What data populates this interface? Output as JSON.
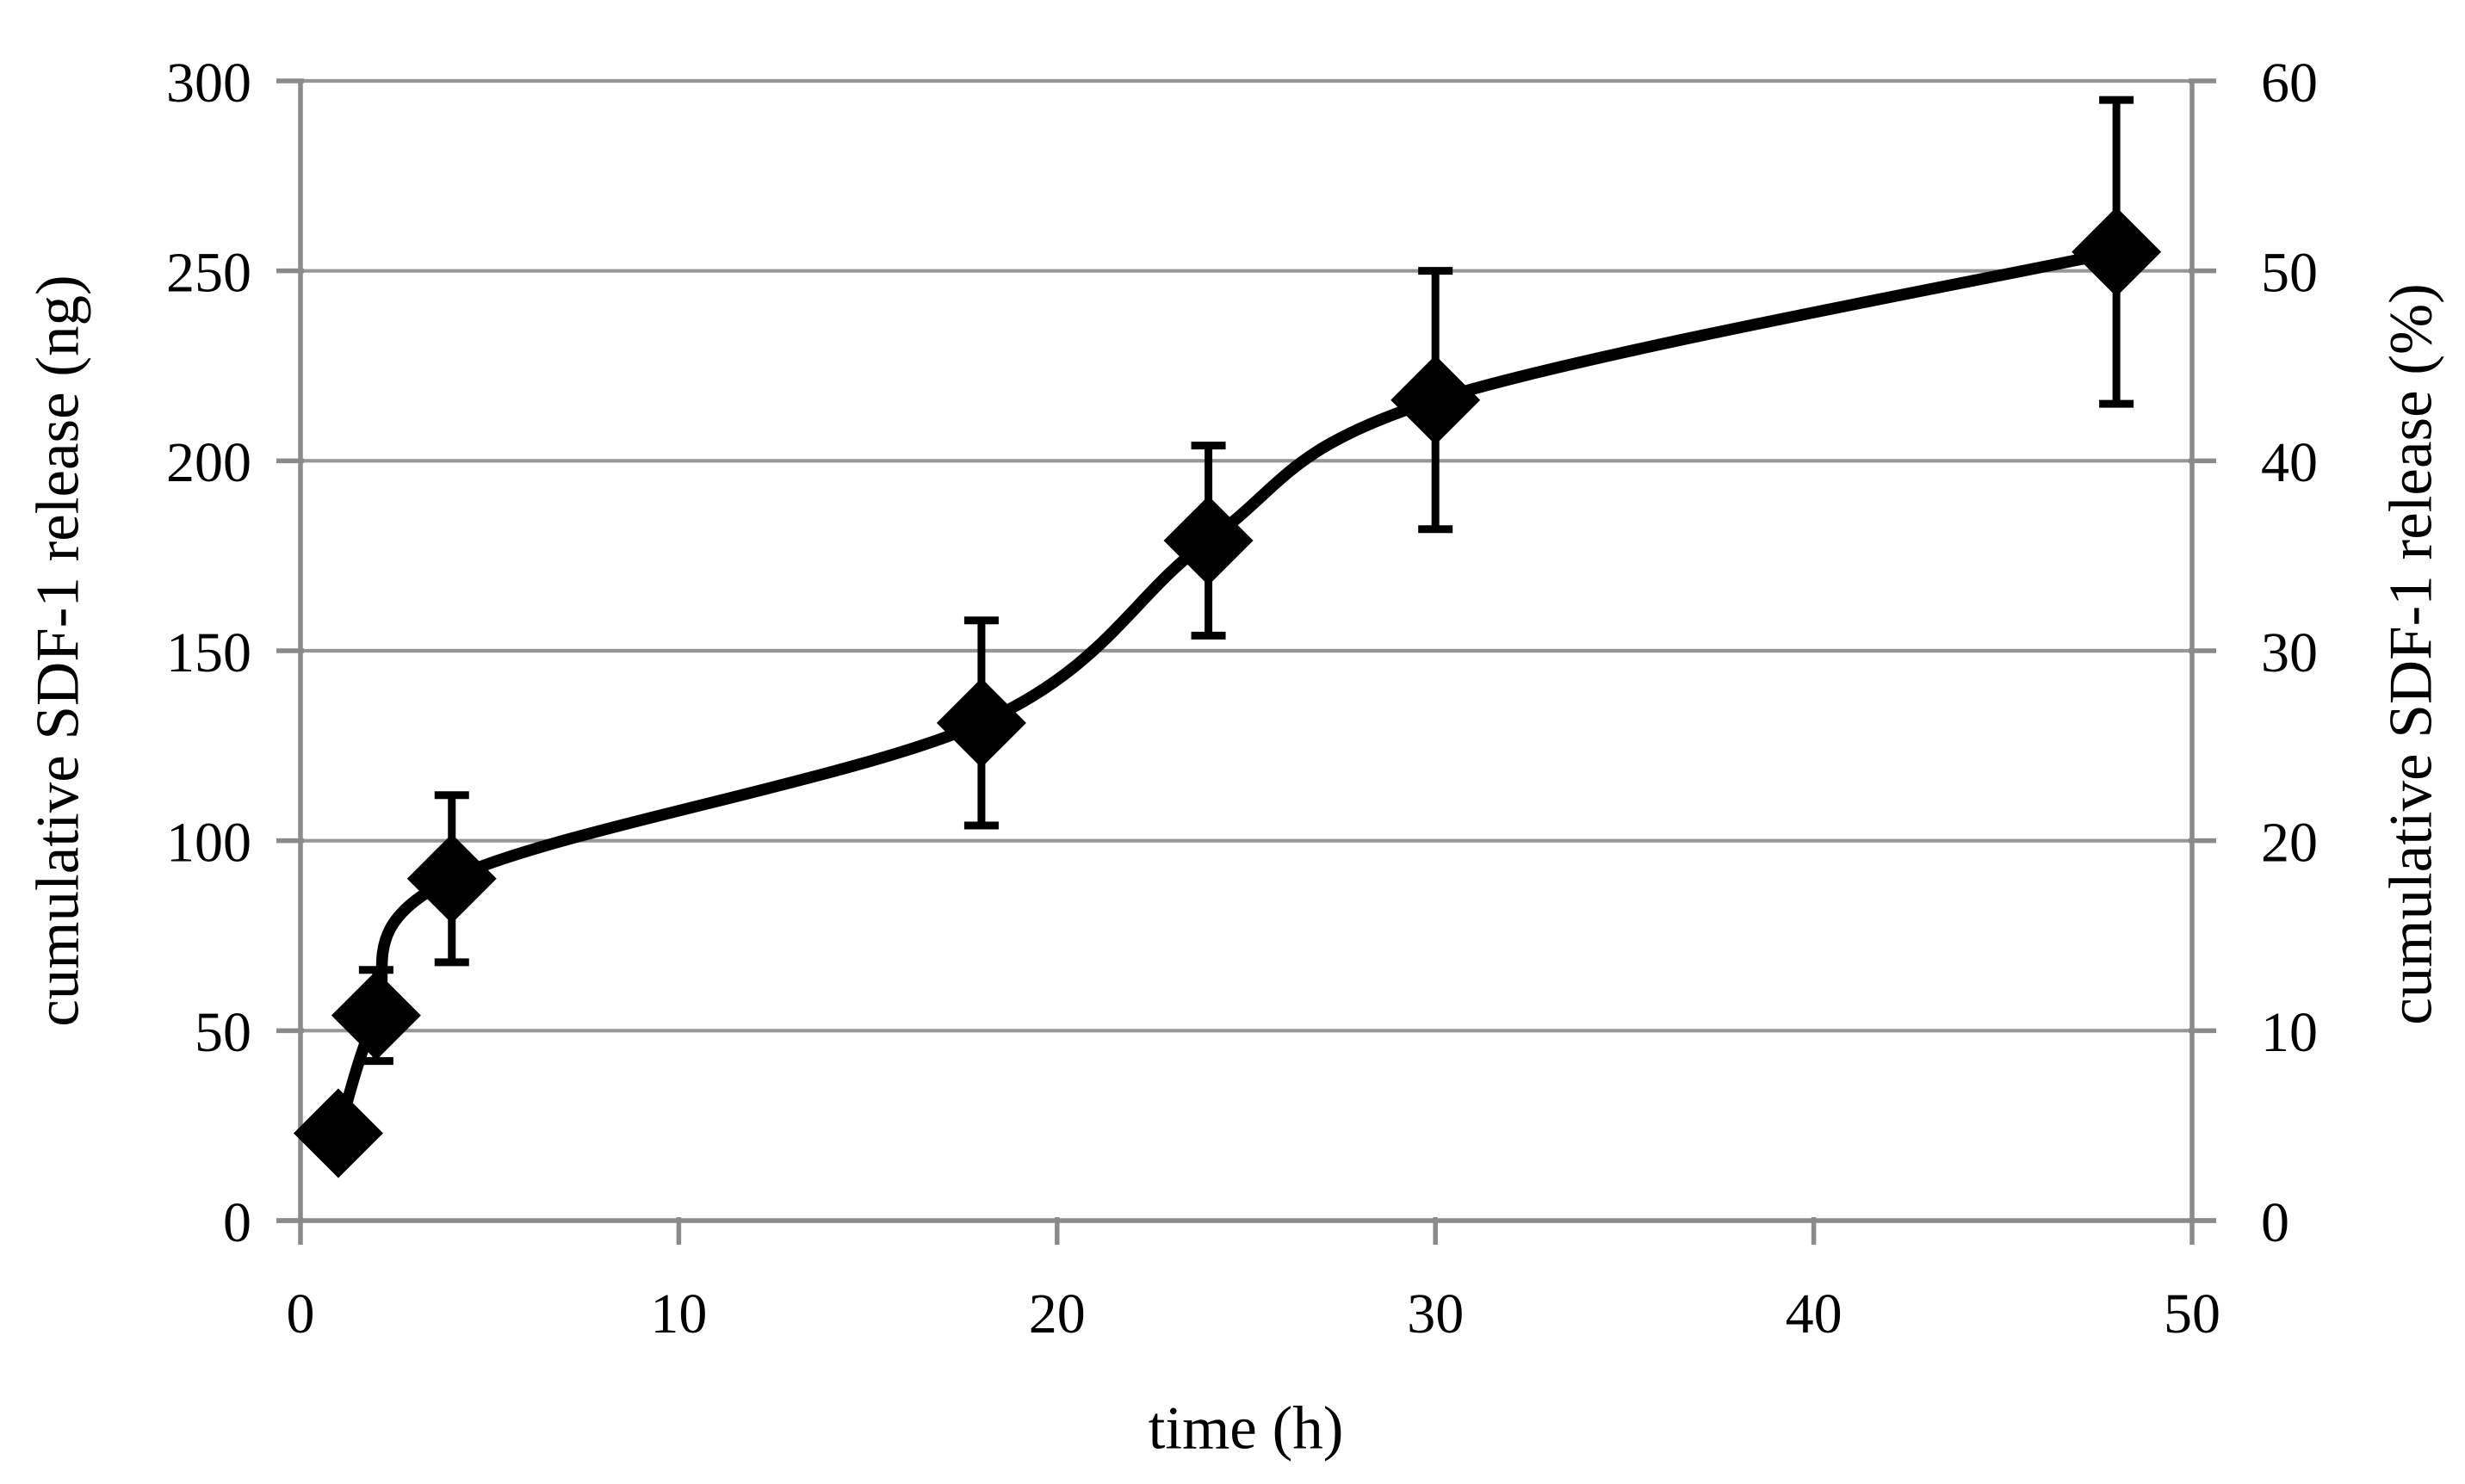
{
  "figure": {
    "background": "#ffffff"
  },
  "chart_data": {
    "type": "line",
    "title": "",
    "xlabel": "time (h)",
    "ylabel_left": "cumulative SDF-1 release (ng)",
    "ylabel_right": "cumulative SDF-1 release (%)",
    "xlim": [
      0,
      50
    ],
    "ylim_left": [
      0,
      300
    ],
    "ylim_right": [
      0,
      60
    ],
    "x_ticks": [
      0,
      10,
      20,
      30,
      40,
      50
    ],
    "y_ticks_left": [
      0,
      50,
      100,
      150,
      200,
      250,
      300
    ],
    "y_ticks_right": [
      0,
      10,
      20,
      30,
      40,
      50,
      60
    ],
    "grid": "horizontal-only",
    "legend": "none",
    "series": [
      {
        "name": "cumulative SDF-1 release",
        "marker": "diamond",
        "line_style": "smooth",
        "color": "#000000",
        "x": [
          1,
          2,
          4,
          18,
          24,
          30,
          48
        ],
        "y_ng": [
          23,
          54,
          90,
          131,
          179,
          216,
          255
        ],
        "y_percent": [
          4.6,
          10.8,
          18.0,
          26.2,
          35.8,
          43.2,
          51.0
        ],
        "error_ng": [
          0,
          12,
          22,
          27,
          25,
          34,
          40
        ]
      }
    ],
    "colors": {
      "series": "#000000",
      "gridline": "#969696",
      "axis": "#8a8a8a",
      "text": "#000000"
    }
  }
}
